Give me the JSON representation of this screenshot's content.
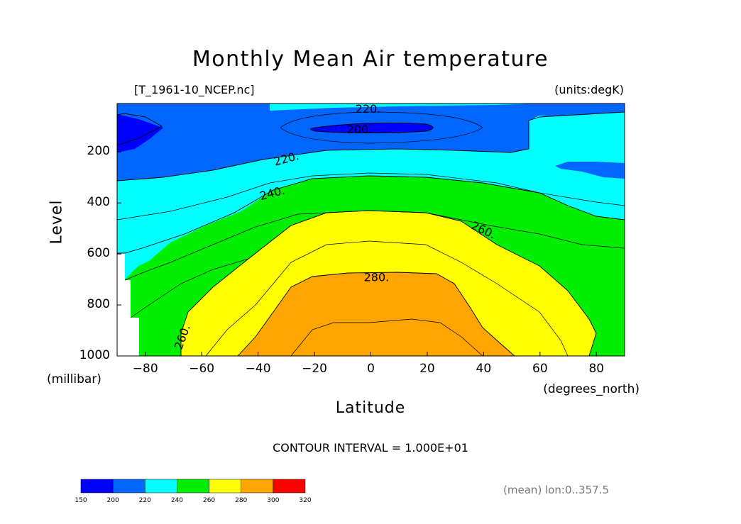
{
  "chart_data": {
    "type": "heatmap",
    "subtype": "filled-contour",
    "title": "Monthly Mean Air temperature",
    "subtitle_left": "[T_1961-10_NCEP.nc]",
    "subtitle_right": "(units:degK)",
    "xlabel": "Latitude",
    "xunits": "(degrees_north)",
    "ylabel": "Level",
    "yunits": "(millibar)",
    "xlim": [
      -90,
      90
    ],
    "ylim": [
      1000,
      10
    ],
    "x_ticks": [
      -80,
      -60,
      -40,
      -20,
      0,
      20,
      40,
      60,
      80
    ],
    "x_tick_labels": [
      "−80",
      "−60",
      "−40",
      "−20",
      "0",
      "20",
      "40",
      "60",
      "80"
    ],
    "y_ticks": [
      200,
      400,
      600,
      800,
      1000
    ],
    "y_tick_labels": [
      "200",
      "400",
      "600",
      "800",
      "1000"
    ],
    "contour_interval": "CONTOUR INTERVAL = 1.000E+01",
    "footer_note": "(mean) lon:0..357.5",
    "contour_labels": [
      {
        "text": "220.",
        "lat": -1,
        "level": 30
      },
      {
        "text": "200.",
        "lat": -4,
        "level": 110
      },
      {
        "text": "220.",
        "lat": -30,
        "level": 225
      },
      {
        "text": "240.",
        "lat": -35,
        "level": 360
      },
      {
        "text": "260.",
        "lat": 40,
        "level": 505
      },
      {
        "text": "280.",
        "lat": 2,
        "level": 690
      },
      {
        "text": "260.",
        "lat": -67,
        "level": 925
      }
    ],
    "bands": [
      {
        "range": "200-210",
        "points": [
          [
            -25,
            100
          ],
          [
            -15,
            82
          ],
          [
            0,
            78
          ],
          [
            15,
            82
          ],
          [
            25,
            100
          ],
          [
            15,
            112
          ],
          [
            0,
            116
          ],
          [
            -15,
            112
          ]
        ]
      },
      {
        "range": "210-220",
        "points": [
          [
            -35,
            100
          ],
          [
            -25,
            75
          ],
          [
            0,
            65
          ],
          [
            25,
            70
          ],
          [
            40,
            100
          ],
          [
            25,
            130
          ],
          [
            0,
            138
          ],
          [
            -25,
            130
          ]
        ]
      }
    ],
    "colorbar": {
      "ticks": [
        "150",
        "200",
        "220",
        "240",
        "260",
        "280",
        "300",
        "320"
      ],
      "colors": [
        "#0000ff",
        "#0066ff",
        "#00ffff",
        "#00ee00",
        "#ffff00",
        "#ffa500",
        "#ff0000"
      ]
    }
  }
}
